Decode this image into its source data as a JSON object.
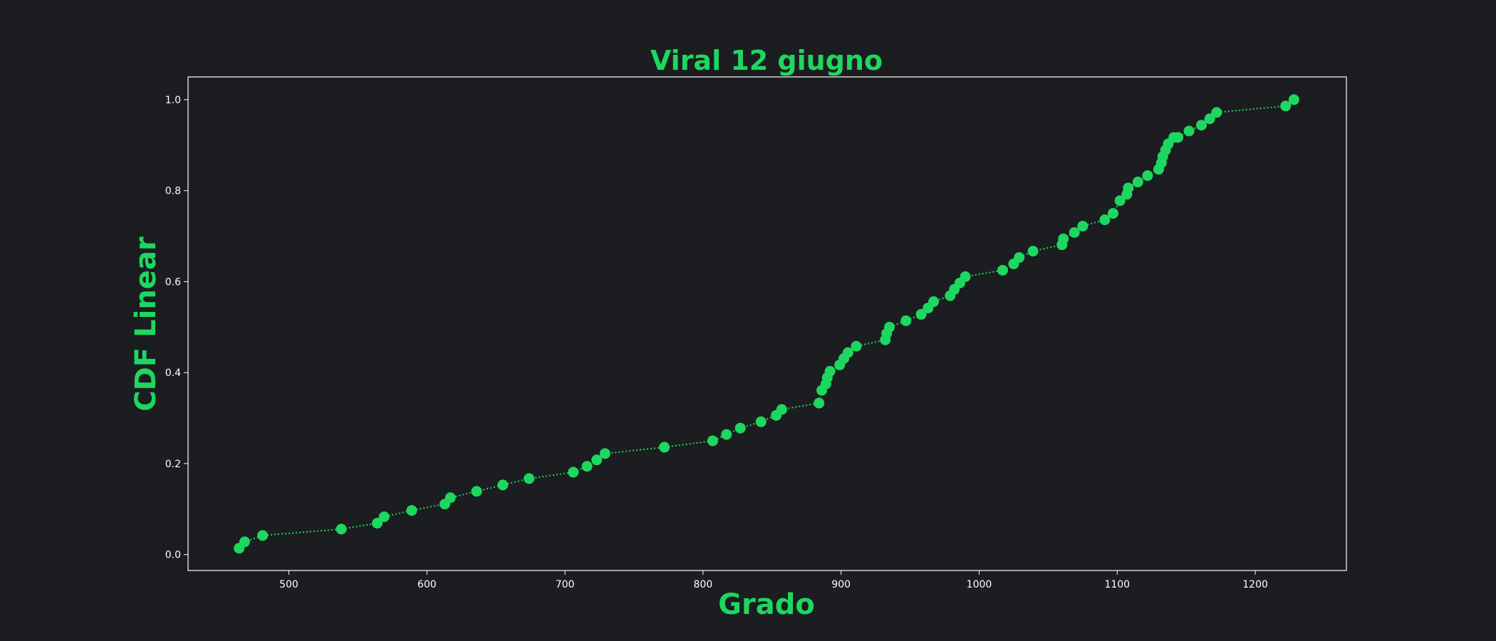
{
  "colors": {
    "background": "#1c1d20",
    "accent": "#1ed760",
    "axes": "#ffffff",
    "text": "#ffffff"
  },
  "chart_data": {
    "type": "scatter",
    "title": "Viral 12 giugno",
    "xlabel": "Grado",
    "ylabel": "CDF Linear",
    "xlim": [
      427,
      1266
    ],
    "ylim": [
      -0.035,
      1.05
    ],
    "xticks": [
      500,
      600,
      700,
      800,
      900,
      1000,
      1100,
      1200
    ],
    "yticks": [
      0.0,
      0.2,
      0.4,
      0.6,
      0.8,
      1.0
    ],
    "xtick_labels": [
      "500",
      "600",
      "700",
      "800",
      "900",
      "1000",
      "1100",
      "1200"
    ],
    "ytick_labels": [
      "0.0",
      "0.2",
      "0.4",
      "0.6",
      "0.8",
      "1.0"
    ],
    "grid": false,
    "line_style": "dotted",
    "marker": "circle",
    "series": [
      {
        "x": [
          464,
          468,
          481,
          538,
          564,
          569,
          589,
          613,
          617,
          636,
          655,
          674,
          706,
          716,
          723,
          729,
          772,
          807,
          817,
          827,
          842,
          853,
          857,
          884,
          886,
          889,
          890,
          892,
          899,
          902,
          905,
          911,
          932,
          933,
          935,
          947,
          958,
          963,
          967,
          979,
          982,
          986,
          990,
          1017,
          1025,
          1029,
          1039,
          1060,
          1061,
          1069,
          1075,
          1091,
          1097,
          1102,
          1107,
          1108,
          1115,
          1122,
          1130,
          1132,
          1133,
          1135,
          1137,
          1141,
          1144,
          1152,
          1161,
          1167,
          1172,
          1222,
          1228
        ],
        "y": [
          0.014,
          0.028,
          0.042,
          0.056,
          0.069,
          0.083,
          0.097,
          0.111,
          0.125,
          0.139,
          0.153,
          0.167,
          0.181,
          0.194,
          0.208,
          0.222,
          0.236,
          0.25,
          0.264,
          0.278,
          0.292,
          0.306,
          0.319,
          0.333,
          0.361,
          0.375,
          0.389,
          0.403,
          0.417,
          0.431,
          0.444,
          0.458,
          0.472,
          0.486,
          0.5,
          0.514,
          0.528,
          0.542,
          0.556,
          0.569,
          0.583,
          0.597,
          0.611,
          0.625,
          0.639,
          0.653,
          0.667,
          0.681,
          0.694,
          0.708,
          0.722,
          0.736,
          0.75,
          0.778,
          0.792,
          0.806,
          0.819,
          0.833,
          0.847,
          0.861,
          0.875,
          0.889,
          0.903,
          0.917,
          0.917,
          0.931,
          0.944,
          0.958,
          0.972,
          0.986,
          1.0
        ]
      }
    ]
  }
}
